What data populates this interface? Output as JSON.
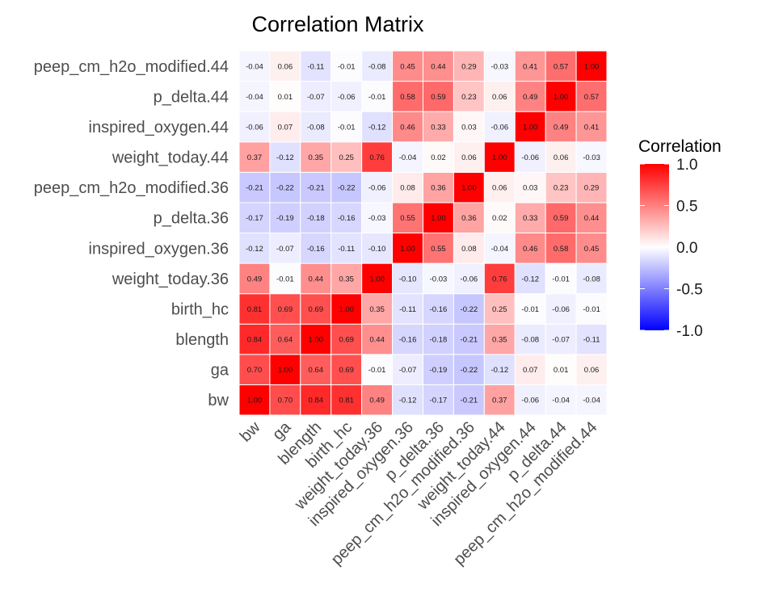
{
  "chart_data": {
    "type": "heatmap",
    "title": "Correlation Matrix",
    "variables": [
      "bw",
      "ga",
      "blength",
      "birth_hc",
      "weight_today.36",
      "inspired_oxygen.36",
      "p_delta.36",
      "peep_cm_h2o_modified.36",
      "weight_today.44",
      "inspired_oxygen.44",
      "p_delta.44",
      "peep_cm_h2o_modified.44"
    ],
    "matrix": [
      [
        1.0,
        0.7,
        0.84,
        0.81,
        0.49,
        -0.12,
        -0.17,
        -0.21,
        0.37,
        -0.06,
        -0.04,
        -0.04
      ],
      [
        0.7,
        1.0,
        0.64,
        0.69,
        -0.01,
        -0.07,
        -0.19,
        -0.22,
        -0.12,
        0.07,
        0.01,
        0.06
      ],
      [
        0.84,
        0.64,
        1.0,
        0.69,
        0.44,
        -0.16,
        -0.18,
        -0.21,
        0.35,
        -0.08,
        -0.07,
        -0.11
      ],
      [
        0.81,
        0.69,
        0.69,
        1.0,
        0.35,
        -0.11,
        -0.16,
        -0.22,
        0.25,
        -0.01,
        -0.06,
        -0.01
      ],
      [
        0.49,
        -0.01,
        0.44,
        0.35,
        1.0,
        -0.1,
        -0.03,
        -0.06,
        0.76,
        -0.12,
        -0.01,
        -0.08
      ],
      [
        -0.12,
        -0.07,
        -0.16,
        -0.11,
        -0.1,
        1.0,
        0.55,
        0.08,
        -0.04,
        0.46,
        0.58,
        0.45
      ],
      [
        -0.17,
        -0.19,
        -0.18,
        -0.16,
        -0.03,
        0.55,
        1.0,
        0.36,
        0.02,
        0.33,
        0.59,
        0.44
      ],
      [
        -0.21,
        -0.22,
        -0.21,
        -0.22,
        -0.06,
        0.08,
        0.36,
        1.0,
        0.06,
        0.03,
        0.23,
        0.29
      ],
      [
        0.37,
        -0.12,
        0.35,
        0.25,
        0.76,
        -0.04,
        0.02,
        0.06,
        1.0,
        -0.06,
        0.06,
        -0.03
      ],
      [
        -0.06,
        0.07,
        -0.08,
        -0.01,
        -0.12,
        0.46,
        0.33,
        0.03,
        -0.06,
        1.0,
        0.49,
        0.41
      ],
      [
        -0.04,
        0.01,
        -0.07,
        -0.06,
        -0.01,
        0.58,
        0.59,
        0.23,
        0.06,
        0.49,
        1.0,
        0.57
      ],
      [
        -0.04,
        0.06,
        -0.11,
        -0.01,
        -0.08,
        0.45,
        0.44,
        0.29,
        -0.03,
        0.41,
        0.57,
        1.0
      ]
    ],
    "legend": {
      "title": "Correlation",
      "ticks": [
        "1.0",
        "0.5",
        "0.0",
        "-0.5",
        "-1.0"
      ],
      "tick_values": [
        1.0,
        0.5,
        0.0,
        -0.5,
        -1.0
      ],
      "range": [
        -1,
        1
      ],
      "placement": "right"
    },
    "colors": {
      "low": "#0000ff",
      "mid": "#ffffff",
      "high": "#ff0000"
    }
  }
}
